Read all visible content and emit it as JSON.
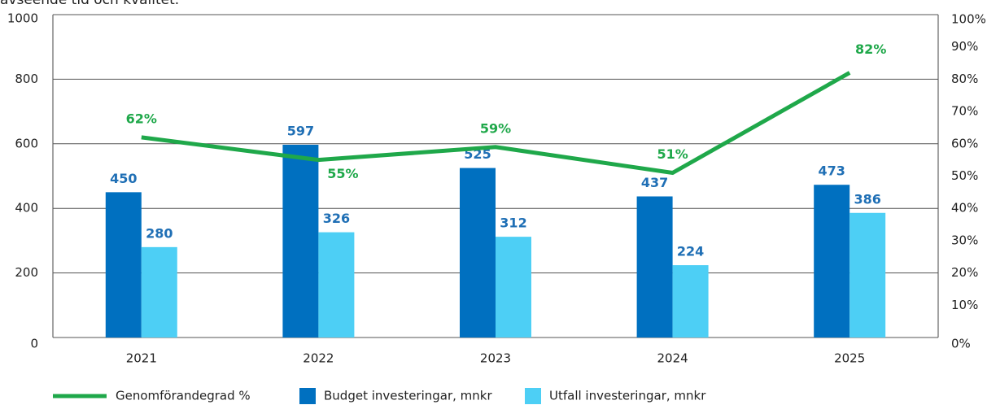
{
  "caption": "avseende tid och kvalitet.",
  "chart_data": {
    "type": "bar",
    "categories": [
      "2021",
      "2022",
      "2023",
      "2024",
      "2025"
    ],
    "series": [
      {
        "name": "Budget investeringar, mnkr",
        "color": "#0070c0",
        "values": [
          450,
          597,
          525,
          437,
          473
        ]
      },
      {
        "name": "Utfall investeringar, mnkr",
        "color": "#4dcff5",
        "values": [
          280,
          326,
          312,
          224,
          386
        ]
      },
      {
        "name": "Genomförandegrad %",
        "type": "line",
        "axis": "y2",
        "color": "#1fa84a",
        "values": [
          62,
          55,
          59,
          51,
          82
        ],
        "value_labels": [
          "62%",
          "55%",
          "59%",
          "51%",
          "82%"
        ]
      }
    ],
    "ylim": [
      0,
      1000
    ],
    "yticks": [
      0,
      200,
      400,
      600,
      800,
      1000
    ],
    "y2lim": [
      0,
      100
    ],
    "y2ticks": [
      {
        "value": 0,
        "label": "0%"
      },
      {
        "value": 10,
        "label": "10%"
      },
      {
        "value": 20,
        "label": "20%"
      },
      {
        "value": 30,
        "label": "30%"
      },
      {
        "value": 40,
        "label": "40%"
      },
      {
        "value": 50,
        "label": "50%"
      },
      {
        "value": 60,
        "label": "60%"
      },
      {
        "value": 70,
        "label": "70%"
      },
      {
        "value": 80,
        "label": "80%"
      },
      {
        "value": 90,
        "label": "90%"
      },
      {
        "value": 100,
        "label": "100%"
      }
    ],
    "grid": true,
    "legend": "bottom"
  }
}
